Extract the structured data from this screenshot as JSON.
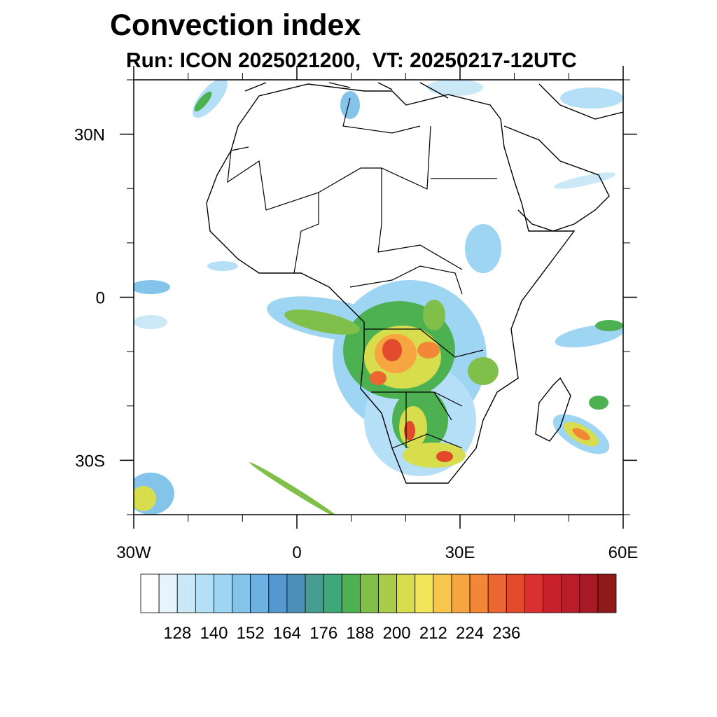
{
  "title": "Convection index",
  "subtitle": "Run: ICON 2025021200,  VT: 20250217-12UTC",
  "map": {
    "projection": "cylindrical equidistant",
    "extent": {
      "lon": [
        -30,
        60
      ],
      "lat": [
        -40,
        40
      ]
    },
    "lon_ticks": [
      {
        "value": -30,
        "label": "30W"
      },
      {
        "value": 0,
        "label": "0"
      },
      {
        "value": 30,
        "label": "30E"
      },
      {
        "value": 60,
        "label": "60E"
      }
    ],
    "lat_ticks": [
      {
        "value": 30,
        "label": "30N"
      },
      {
        "value": 0,
        "label": "0"
      },
      {
        "value": -30,
        "label": "30S"
      }
    ],
    "field": "convection index",
    "max_convection_regions": [
      "Angola / Zambia / DR Congo",
      "Botswana / South Africa",
      "Madagascar (southeast)"
    ]
  },
  "colorbar": {
    "colors": [
      "#ffffff",
      "#e8f4fc",
      "#cbe8f7",
      "#b5dff6",
      "#9dd5f3",
      "#84c3ea",
      "#6cb1e2",
      "#5598d0",
      "#4e8fb8",
      "#489d91",
      "#3fa878",
      "#4db152",
      "#7fbf4a",
      "#a9cd4a",
      "#d7dd4c",
      "#f2e55a",
      "#f8c64a",
      "#f7a540",
      "#f18737",
      "#eb6630",
      "#e24a2c",
      "#d93030",
      "#c9212c",
      "#b91d2a",
      "#a51a24",
      "#8f1a1c"
    ],
    "labels": [
      "128",
      "140",
      "152",
      "164",
      "176",
      "188",
      "200",
      "212",
      "224",
      "236"
    ]
  }
}
